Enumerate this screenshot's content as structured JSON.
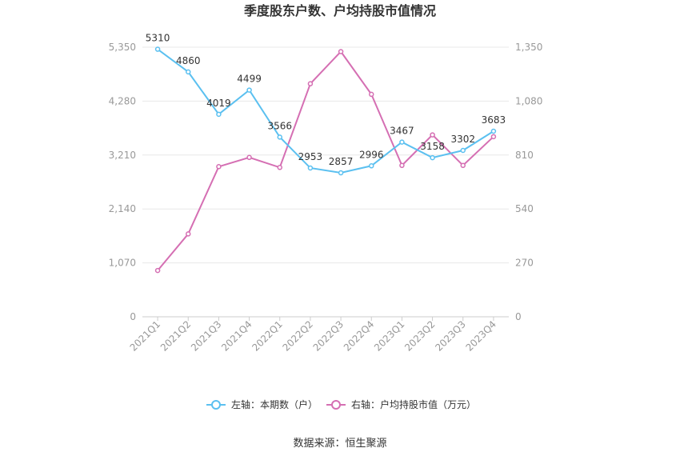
{
  "chart_data": {
    "type": "line",
    "title": "季度股东户数、户均持股市值情况",
    "categories": [
      "2021Q1",
      "2021Q2",
      "2021Q3",
      "2021Q4",
      "2022Q1",
      "2022Q2",
      "2022Q3",
      "2022Q4",
      "2023Q1",
      "2023Q2",
      "2023Q3",
      "2023Q4"
    ],
    "left_axis": {
      "ticks": [
        "0",
        "1,070",
        "2,140",
        "3,210",
        "4,280",
        "5,350"
      ],
      "ylim": [
        0,
        5350
      ]
    },
    "right_axis": {
      "ticks": [
        "0",
        "270",
        "540",
        "810",
        "1,080",
        "1,350"
      ],
      "ylim": [
        0,
        1350
      ]
    },
    "series": [
      {
        "name": "左轴：本期数（户）",
        "axis": "left",
        "color": "#5bc0f0",
        "values": [
          5310,
          4860,
          4019,
          4499,
          3566,
          2953,
          2857,
          2996,
          3467,
          3158,
          3302,
          3683
        ],
        "labels": [
          "5310",
          "4860",
          "4019",
          "4499",
          "3566",
          "2953",
          "2857",
          "2996",
          "3467",
          "3158",
          "3302",
          "3683"
        ]
      },
      {
        "name": "右轴：户均持股市值（万元）",
        "axis": "right",
        "color": "#d56fb3",
        "values": [
          232,
          415,
          752,
          798,
          748,
          1167,
          1328,
          1114,
          758,
          911,
          758,
          902
        ]
      }
    ],
    "legend_position": "bottom",
    "grid": true
  },
  "footer": {
    "source": "数据来源：恒生聚源"
  }
}
